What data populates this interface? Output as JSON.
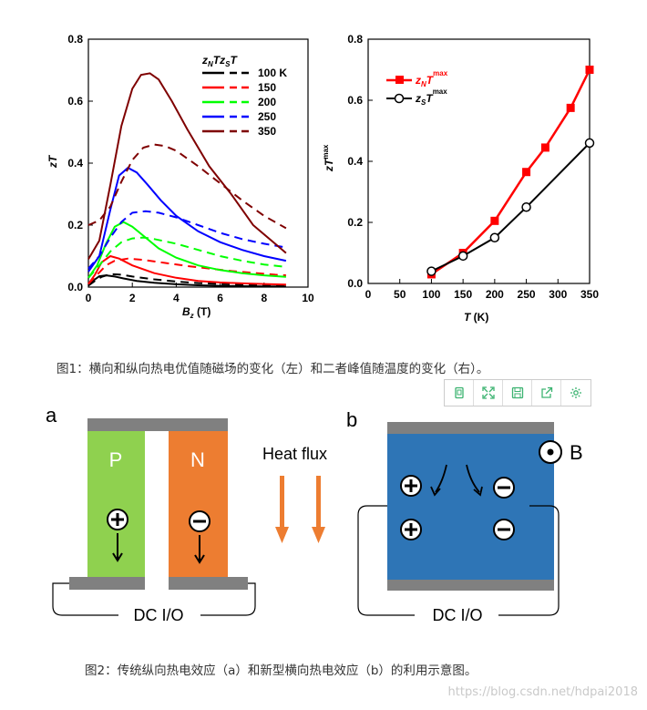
{
  "chart_data": [
    {
      "type": "line",
      "title": "",
      "xlabel": "B_z (T)",
      "ylabel": "zT",
      "xlim": [
        0,
        10
      ],
      "ylim": [
        0,
        0.8
      ],
      "x_ticks": [
        "0",
        "2",
        "4",
        "6",
        "8",
        "10"
      ],
      "y_ticks": [
        "0.0",
        "0.2",
        "0.4",
        "0.6",
        "0.8"
      ],
      "legend_header": "zNTzST",
      "legend_placement": "top-right",
      "series": [
        {
          "name": "100 K",
          "color": "#000000",
          "style": "solid",
          "x": [
            0,
            0.2,
            0.5,
            0.8,
            1.2,
            1.6,
            2.2,
            3,
            4,
            5,
            6,
            7,
            8,
            9
          ],
          "values": [
            0.005,
            0.02,
            0.035,
            0.038,
            0.034,
            0.028,
            0.02,
            0.014,
            0.009,
            0.006,
            0.004,
            0.003,
            0.002,
            0.002
          ]
        },
        {
          "name": "100 K",
          "color": "#000000",
          "style": "dashed",
          "x": [
            0,
            0.3,
            0.6,
            1,
            1.5,
            2,
            3,
            4,
            5,
            6,
            7,
            8,
            9
          ],
          "values": [
            0.005,
            0.02,
            0.033,
            0.042,
            0.04,
            0.034,
            0.025,
            0.018,
            0.013,
            0.01,
            0.008,
            0.006,
            0.005
          ]
        },
        {
          "name": "150",
          "color": "#ff0000",
          "style": "solid",
          "x": [
            0,
            0.3,
            0.6,
            1,
            1.4,
            2,
            3,
            4,
            5,
            6,
            7,
            8,
            9
          ],
          "values": [
            0.01,
            0.04,
            0.08,
            0.1,
            0.092,
            0.07,
            0.045,
            0.03,
            0.02,
            0.015,
            0.012,
            0.01,
            0.008
          ]
        },
        {
          "name": "150",
          "color": "#ff0000",
          "style": "dashed",
          "x": [
            0,
            0.4,
            0.8,
            1.2,
            1.8,
            2.5,
            3.5,
            4.5,
            5.5,
            6.5,
            7.5,
            8.5,
            9
          ],
          "values": [
            0.01,
            0.04,
            0.07,
            0.085,
            0.092,
            0.088,
            0.078,
            0.068,
            0.06,
            0.052,
            0.046,
            0.04,
            0.038
          ]
        },
        {
          "name": "200",
          "color": "#00ff00",
          "style": "solid",
          "x": [
            0,
            0.4,
            0.8,
            1.2,
            1.6,
            2,
            2.6,
            3.2,
            4,
            5,
            6,
            7,
            8,
            9
          ],
          "values": [
            0.03,
            0.07,
            0.14,
            0.195,
            0.21,
            0.195,
            0.16,
            0.125,
            0.095,
            0.07,
            0.055,
            0.045,
            0.038,
            0.033
          ]
        },
        {
          "name": "200",
          "color": "#00ff00",
          "style": "dashed",
          "x": [
            0,
            0.5,
            1,
            1.5,
            2,
            2.5,
            3,
            4,
            5,
            6,
            7,
            8,
            9
          ],
          "values": [
            0.03,
            0.07,
            0.115,
            0.145,
            0.157,
            0.16,
            0.155,
            0.14,
            0.12,
            0.1,
            0.085,
            0.073,
            0.065
          ]
        },
        {
          "name": "250",
          "color": "#0000ff",
          "style": "solid",
          "x": [
            0,
            0.5,
            1,
            1.4,
            1.8,
            2.2,
            2.7,
            3.3,
            4,
            5,
            6,
            7,
            8,
            9
          ],
          "values": [
            0.05,
            0.1,
            0.25,
            0.36,
            0.385,
            0.37,
            0.33,
            0.28,
            0.23,
            0.18,
            0.145,
            0.12,
            0.1,
            0.085
          ]
        },
        {
          "name": "250",
          "color": "#0000ff",
          "style": "dashed",
          "x": [
            0,
            0.5,
            1,
            1.5,
            2,
            2.6,
            3.2,
            4,
            5,
            6,
            7,
            8,
            9
          ],
          "values": [
            0.06,
            0.1,
            0.16,
            0.21,
            0.24,
            0.245,
            0.24,
            0.225,
            0.2,
            0.175,
            0.155,
            0.14,
            0.128
          ]
        },
        {
          "name": "350",
          "color": "#7f0000",
          "style": "solid",
          "x": [
            0,
            0.5,
            1,
            1.5,
            2,
            2.4,
            2.8,
            3.2,
            3.8,
            4.5,
            5.5,
            6.5,
            7.5,
            8.5,
            9
          ],
          "values": [
            0.09,
            0.15,
            0.33,
            0.52,
            0.64,
            0.685,
            0.69,
            0.67,
            0.6,
            0.51,
            0.39,
            0.3,
            0.2,
            0.14,
            0.11
          ]
        },
        {
          "name": "350",
          "color": "#7f0000",
          "style": "dashed",
          "x": [
            0,
            0.5,
            1,
            1.5,
            2,
            2.5,
            3,
            3.5,
            4,
            5,
            6,
            7,
            8,
            9
          ],
          "values": [
            0.2,
            0.215,
            0.26,
            0.34,
            0.41,
            0.45,
            0.46,
            0.455,
            0.44,
            0.39,
            0.335,
            0.28,
            0.23,
            0.19
          ]
        }
      ]
    },
    {
      "type": "line",
      "title": "",
      "xlabel": "T (K)",
      "ylabel": "zT^max",
      "xlim": [
        0,
        350
      ],
      "ylim": [
        0,
        0.8
      ],
      "x_ticks": [
        "0",
        "50",
        "100",
        "150",
        "200",
        "250",
        "300",
        "350"
      ],
      "y_ticks": [
        "0.0",
        "0.2",
        "0.4",
        "0.6",
        "0.8"
      ],
      "legend_placement": "top-left",
      "series": [
        {
          "name": "zNTmax",
          "color": "#ff0000",
          "marker": "square",
          "x": [
            100,
            150,
            200,
            250,
            280,
            320,
            350
          ],
          "values": [
            0.03,
            0.1,
            0.205,
            0.365,
            0.445,
            0.575,
            0.7
          ]
        },
        {
          "name": "zSTmax",
          "color": "#000000",
          "marker": "circle-open",
          "x": [
            100,
            150,
            200,
            250,
            350
          ],
          "values": [
            0.04,
            0.09,
            0.15,
            0.25,
            0.46
          ]
        }
      ]
    }
  ],
  "figure1": {
    "caption": "图1：横向和纵向热电优值随磁场的变化（左）和二者峰值随温度的变化（右）。",
    "left_legend_header": "zNTzST"
  },
  "toolbar": {
    "icons": [
      "copy-icon",
      "fullscreen-icon",
      "save-icon",
      "share-icon",
      "settings-icon"
    ]
  },
  "figure2": {
    "panel_a_label": "a",
    "panel_b_label": "b",
    "p_label": "P",
    "n_label": "N",
    "heat_flux_label": "Heat flux",
    "dc_label_a": "DC I/O",
    "dc_label_b": "DC I/O",
    "b_field_label": "B",
    "colors": {
      "p_leg": "#8fd14f",
      "n_leg": "#ed7d31",
      "block": "#2e75b6",
      "contact": "#808080",
      "arrow": "#ed7d31"
    },
    "caption": "图2：传统纵向热电效应（a）和新型横向热电效应（b）的利用示意图。"
  },
  "watermark": "https://blog.csdn.net/hdpai2018"
}
